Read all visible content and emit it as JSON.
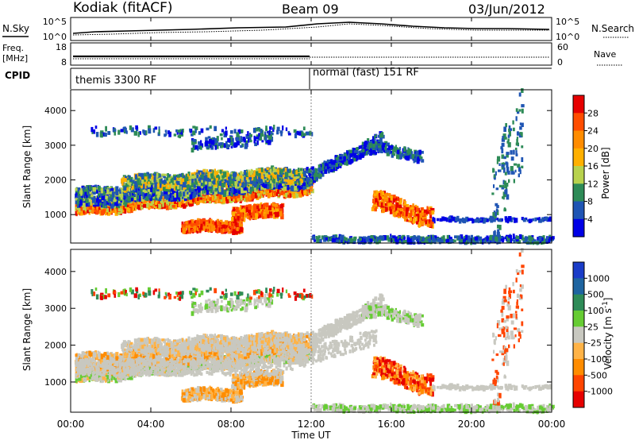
{
  "header": {
    "title": "Kodiak (fitACF)",
    "beam": "Beam 09",
    "date": "03/Jun/2012"
  },
  "status_panels": {
    "nsky_label": "N.Sky",
    "nsearch_label": "N.Search",
    "freq_label_1": "Freq.",
    "freq_label_2": "[MHz]",
    "nave_label": "Nave",
    "cpid_label": "CPID",
    "noise_ticks_left": [
      "10^5",
      "10^0"
    ],
    "noise_ticks_right": [
      "10^5",
      "10^0"
    ],
    "freq_ticks": [
      "18",
      "8"
    ],
    "nave_ticks": [
      "60",
      "0"
    ],
    "cpid_modes": [
      {
        "label": "themis 3300 RF",
        "start_hour": 0
      },
      {
        "label": "normal (fast) 151 RF",
        "start_hour": 12
      }
    ]
  },
  "chart_data": [
    {
      "type": "heatmap",
      "name": "power",
      "xlabel": "Time UT",
      "ylabel": "Slant Range [km]",
      "xlim": [
        0,
        24
      ],
      "ylim": [
        180,
        4600
      ],
      "x_tick_labels": [
        "00:00",
        "04:00",
        "08:00",
        "12:00",
        "16:00",
        "20:00",
        "00:00"
      ],
      "x_tick_hours": [
        0,
        4,
        8,
        12,
        16,
        20,
        24
      ],
      "y_tick_labels": [
        "1000",
        "2000",
        "3000",
        "4000"
      ],
      "y_ticks": [
        1000,
        2000,
        3000,
        4000
      ],
      "colorbar": {
        "label": "Power [dB]",
        "tick_labels": [
          "28",
          "24",
          "20",
          "16",
          "12",
          "8",
          "4"
        ],
        "colors": [
          "#e60000",
          "#ff4d00",
          "#ff8c00",
          "#ffb000",
          "#b8d24d",
          "#2e8b57",
          "#1f55b4",
          "#0000e6"
        ]
      }
    },
    {
      "type": "heatmap",
      "name": "velocity",
      "xlabel": "Time UT",
      "ylabel": "Slant Range [km]",
      "xlim": [
        0,
        24
      ],
      "ylim": [
        180,
        4600
      ],
      "x_tick_labels": [
        "00:00",
        "04:00",
        "08:00",
        "12:00",
        "16:00",
        "20:00",
        "00:00"
      ],
      "x_tick_hours": [
        0,
        4,
        8,
        12,
        16,
        20,
        24
      ],
      "y_tick_labels": [
        "1000",
        "2000",
        "3000",
        "4000"
      ],
      "y_ticks": [
        1000,
        2000,
        3000,
        4000
      ],
      "colorbar": {
        "label": "Velocity [m s^-1]",
        "tick_labels": [
          "1000",
          "500",
          "100",
          "25",
          "-25",
          "-100",
          "-500",
          "-1000"
        ],
        "colors": [
          "#1a3cc8",
          "#1e64a0",
          "#2e8b57",
          "#66cc33",
          "#c8c8c0",
          "#ffb347",
          "#ff8c00",
          "#ff4500",
          "#e60000"
        ]
      }
    }
  ]
}
